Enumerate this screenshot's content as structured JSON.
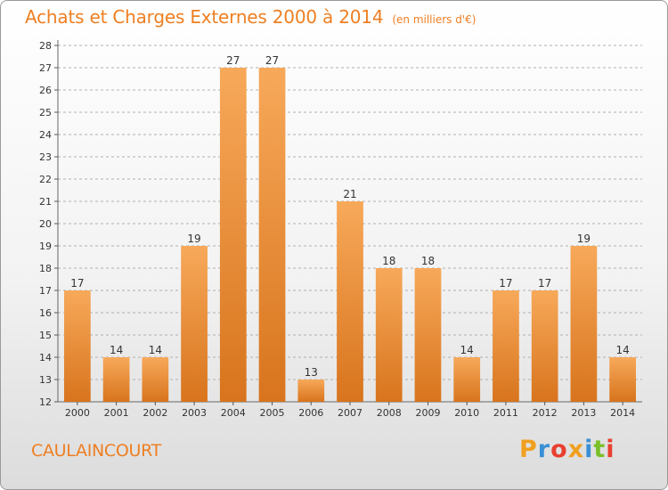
{
  "header": {
    "title": "Achats et Charges Externes 2000 à 2014",
    "unit": "(en milliers d'€)"
  },
  "footer": {
    "commune": "CAULAINCOURT",
    "logo_text": "Proxiti",
    "logo_colors": [
      "#f0a020",
      "#3a8fd6",
      "#e8402f",
      "#f0a020",
      "#3a8fd6",
      "#7bbf2a",
      "#e8402f"
    ]
  },
  "colors": {
    "bar_top": "#f7a95a",
    "bar_bottom": "#d8741d",
    "title": "#ee7f22",
    "grid": "#b0b0b0"
  },
  "chart_data": {
    "type": "bar",
    "title": "Achats et Charges Externes 2000 à 2014",
    "subtitle": "(en milliers d'€)",
    "categories": [
      "2000",
      "2001",
      "2002",
      "2003",
      "2004",
      "2005",
      "2006",
      "2007",
      "2008",
      "2009",
      "2010",
      "2011",
      "2012",
      "2013",
      "2014"
    ],
    "values": [
      17,
      14,
      14,
      19,
      27,
      27,
      13,
      21,
      18,
      18,
      14,
      17,
      17,
      19,
      14
    ],
    "xlabel": "",
    "ylabel": "",
    "ylim": [
      12,
      28
    ],
    "yticks": [
      12,
      13,
      14,
      15,
      16,
      17,
      18,
      19,
      20,
      21,
      22,
      23,
      24,
      25,
      26,
      27,
      28
    ],
    "grid": true,
    "grid_style": "dashed-horizontal",
    "data_labels": true
  }
}
